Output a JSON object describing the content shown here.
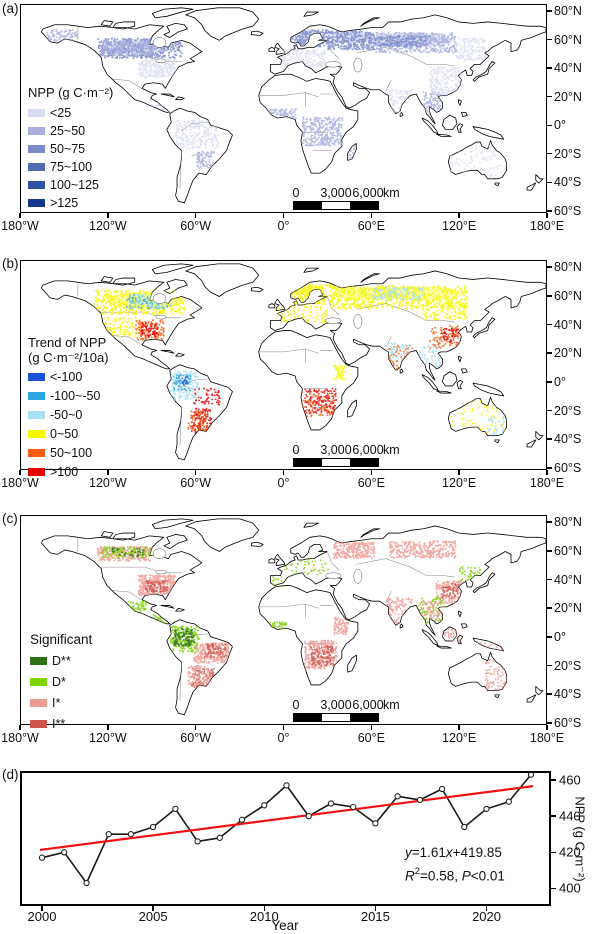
{
  "figure": {
    "map_axes": {
      "lon": [
        "180°W",
        "120°W",
        "60°W",
        "0°",
        "60°E",
        "120°E",
        "180°E"
      ],
      "lat": [
        "80°N",
        "60°N",
        "40°N",
        "20°N",
        "0°",
        "20°S",
        "40°S",
        "60°S"
      ]
    },
    "scalebar": {
      "zero": "0",
      "mid": "3,000",
      "end": "6,000",
      "unit": "km"
    },
    "panels": {
      "a": {
        "label": "(a)",
        "legend_title": "NPP (g C·m⁻²)",
        "legend": [
          {
            "label": "<25",
            "color": "#d9dcf0"
          },
          {
            "label": "25~50",
            "color": "#a9aedd"
          },
          {
            "label": "50~75",
            "color": "#7b8bc9"
          },
          {
            "label": "75~100",
            "color": "#4f6cb5"
          },
          {
            "label": "100~125",
            "color": "#2d54a6"
          },
          {
            "label": ">125",
            "color": "#17368d"
          }
        ]
      },
      "b": {
        "label": "(b)",
        "legend_title_line1": "Trend of NPP",
        "legend_title_line2": "(g C·m⁻²/10a)",
        "legend": [
          {
            "label": "<-100",
            "color": "#1c52d9"
          },
          {
            "label": "-100~-50",
            "color": "#2aa7de"
          },
          {
            "label": "-50~0",
            "color": "#a8e1f2"
          },
          {
            "label": "0~50",
            "color": "#f7f700"
          },
          {
            "label": "50~100",
            "color": "#f85c10"
          },
          {
            "label": ">100",
            "color": "#e60000"
          }
        ]
      },
      "c": {
        "label": "(c)",
        "legend_title": "Significant",
        "legend": [
          {
            "label": "D**",
            "color": "#2d7015"
          },
          {
            "label": "D*",
            "color": "#7fd30a"
          },
          {
            "label": "I*",
            "color": "#ef9a92"
          },
          {
            "label": "I**",
            "color": "#c9544c"
          }
        ]
      },
      "d": {
        "label": "(d)",
        "xlabel": "Year",
        "ylabel": "NPP (g C·m⁻²)",
        "x_ticks": [
          "2000",
          "2005",
          "2010",
          "2015",
          "2020"
        ],
        "y_ticks": [
          "400",
          "420",
          "440",
          "460"
        ],
        "equation": {
          "var_y": "y",
          "body1": "=1.61",
          "var_x": "x",
          "body2": "+419.85",
          "var_r": "R",
          "sup": "2",
          "body3": "=0.58, ",
          "var_p": "P",
          "body4": "<0.01"
        }
      }
    }
  },
  "chart_data": [
    {
      "type": "heatmap",
      "panel": "a",
      "title": "NPP (g C·m⁻²)",
      "legend_position": "left-middle",
      "classes": [
        "<25",
        "25~50",
        "50~75",
        "75~100",
        "100~125",
        ">125"
      ],
      "colors": [
        "#d9dcf0",
        "#a9aedd",
        "#7b8bc9",
        "#4f6cb5",
        "#2d54a6",
        "#17368d"
      ],
      "map_extent": {
        "lon": [
          -180,
          180
        ],
        "lat": [
          -61,
          85
        ]
      },
      "x_ticks": [
        "180°W",
        "120°W",
        "60°W",
        "0°",
        "60°E",
        "120°E",
        "180°E"
      ],
      "y_ticks": [
        "80°N",
        "60°N",
        "40°N",
        "20°N",
        "0°",
        "20°S",
        "40°S",
        "60°S"
      ],
      "scalebar": "0 3,000 6,000 km"
    },
    {
      "type": "heatmap",
      "panel": "b",
      "title": "Trend of NPP (g C·m⁻²/10a)",
      "legend_position": "left-middle",
      "classes": [
        "<-100",
        "-100~-50",
        "-50~0",
        "0~50",
        "50~100",
        ">100"
      ],
      "colors": [
        "#1c52d9",
        "#2aa7de",
        "#a8e1f2",
        "#f7f700",
        "#f85c10",
        "#e60000"
      ],
      "map_extent": {
        "lon": [
          -180,
          180
        ],
        "lat": [
          -61,
          85
        ]
      },
      "x_ticks": [
        "180°W",
        "120°W",
        "60°W",
        "0°",
        "60°E",
        "120°E",
        "180°E"
      ],
      "y_ticks": [
        "80°N",
        "60°N",
        "40°N",
        "20°N",
        "0°",
        "20°S",
        "40°S",
        "60°S"
      ],
      "scalebar": "0 3,000 6,000 km"
    },
    {
      "type": "heatmap",
      "panel": "c",
      "title": "Significant",
      "legend_position": "left-bottom",
      "classes": [
        "D**",
        "D*",
        "I*",
        "I**"
      ],
      "colors": [
        "#2d7015",
        "#7fd30a",
        "#ef9a92",
        "#c9544c"
      ],
      "map_extent": {
        "lon": [
          -180,
          180
        ],
        "lat": [
          -61,
          85
        ]
      },
      "x_ticks": [
        "180°W",
        "120°W",
        "60°W",
        "0°",
        "60°E",
        "120°E",
        "180°E"
      ],
      "y_ticks": [
        "80°N",
        "60°N",
        "40°N",
        "20°N",
        "0°",
        "20°S",
        "40°S",
        "60°S"
      ],
      "scalebar": "0 3,000 6,000 km"
    },
    {
      "type": "line",
      "panel": "d",
      "xlabel": "Year",
      "ylabel": "NPP (g C·m⁻²)",
      "x": [
        2000,
        2001,
        2002,
        2003,
        2004,
        2005,
        2006,
        2007,
        2008,
        2009,
        2010,
        2011,
        2012,
        2013,
        2014,
        2015,
        2016,
        2017,
        2018,
        2019,
        2020,
        2021,
        2022
      ],
      "series": [
        {
          "name": "NPP",
          "values": [
            417,
            420,
            403,
            430,
            430,
            434,
            444,
            426,
            428,
            438,
            446,
            457,
            440,
            447,
            445,
            436,
            451,
            449,
            455,
            434,
            444,
            448,
            463
          ]
        }
      ],
      "trendline": {
        "color": "#f50f0f",
        "equation": "y=1.61x+419.85",
        "R2": "0.58",
        "P": "<0.01",
        "x_range": [
          2000,
          2022
        ],
        "y_start": 421.3,
        "y_end": 456.6
      },
      "marker": "open-circle",
      "line_color": "#1a1a1a",
      "ylim": [
        391,
        464
      ],
      "x_ticks": [
        2000,
        2005,
        2010,
        2015,
        2020
      ],
      "y_ticks": [
        400,
        420,
        440,
        460
      ],
      "grid": false,
      "y_axis_side": "right"
    }
  ]
}
